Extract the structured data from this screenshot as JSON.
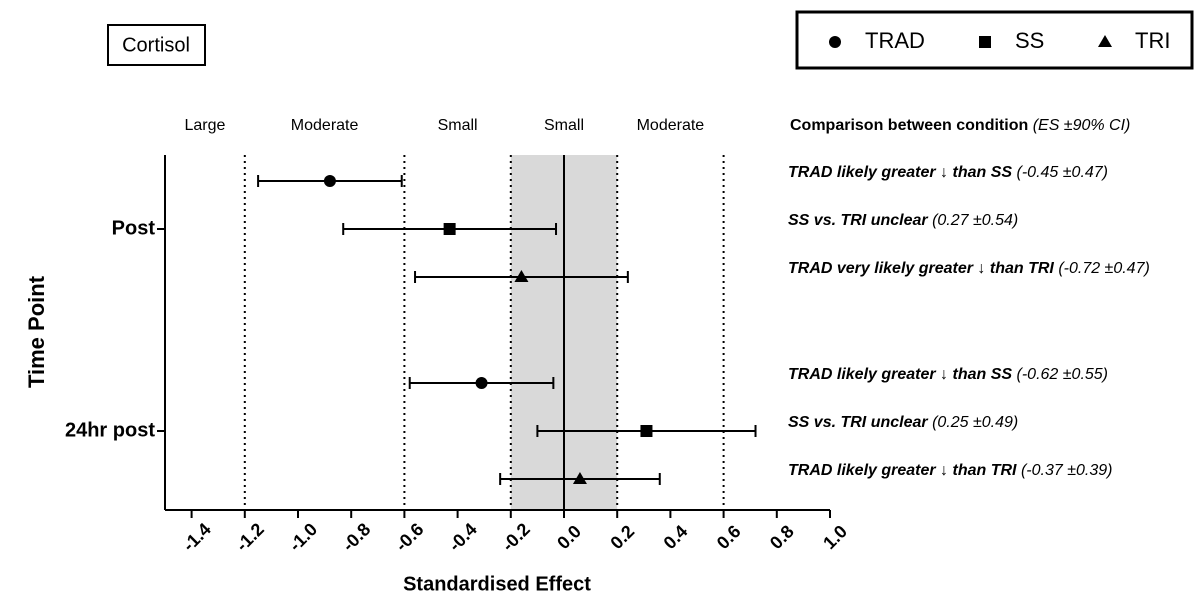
{
  "chart_data": {
    "type": "forest",
    "title": "Cortisol",
    "x_label": "Standardised Effect",
    "y_label": "Time Point",
    "xlim": [
      -1.5,
      1.0
    ],
    "xticks": [
      -1.4,
      -1.2,
      {
        "value": -1.0,
        "label": "-1.0"
      },
      -0.8,
      -0.6,
      -0.4,
      -0.2,
      {
        "value": 0.0,
        "label": "0.0"
      },
      0.2,
      0.4,
      0.6,
      0.8,
      {
        "value": 1.0,
        "label": "1.0"
      }
    ],
    "thresholds": [
      -1.2,
      -0.6,
      -0.2,
      0.2,
      0.6
    ],
    "shaded_zone": [
      -0.2,
      0.2
    ],
    "reference_line": 0,
    "zone_labels": [
      "Large",
      "Moderate",
      "Small",
      "Small",
      "Moderate"
    ],
    "categories": [
      "Post",
      "24hr post"
    ],
    "series": [
      {
        "name": "TRAD",
        "marker": "circle",
        "color": "#000000",
        "values": [
          -0.88,
          -0.31
        ],
        "errors": [
          0.27,
          0.27
        ]
      },
      {
        "name": "SS",
        "marker": "square",
        "color": "#000000",
        "values": [
          -0.43,
          0.31
        ],
        "errors": [
          0.4,
          0.41
        ]
      },
      {
        "name": "TRI",
        "marker": "triangle",
        "color": "#000000",
        "values": [
          -0.16,
          0.06
        ],
        "errors": [
          0.4,
          0.3
        ]
      }
    ],
    "comparisons_header": {
      "text": "Comparison between condition",
      "note": "(ES ±90% CI)"
    },
    "comparisons": [
      {
        "text": "TRAD likely greater ↓ than SS",
        "es": "(-0.45 ±0.47)"
      },
      {
        "text": "SS vs. TRI unclear",
        "es": "(0.27 ±0.54)"
      },
      {
        "text": "TRAD very likely greater ↓ than TRI",
        "es": "(-0.72 ±0.47)"
      },
      {
        "text": "TRAD likely greater ↓ than SS",
        "es": "(-0.62 ±0.55)"
      },
      {
        "text": "SS vs. TRI unclear",
        "es": "(0.25 ±0.49)"
      },
      {
        "text": "TRAD likely greater ↓ than TRI",
        "es": "(-0.37 ±0.39)"
      }
    ]
  }
}
